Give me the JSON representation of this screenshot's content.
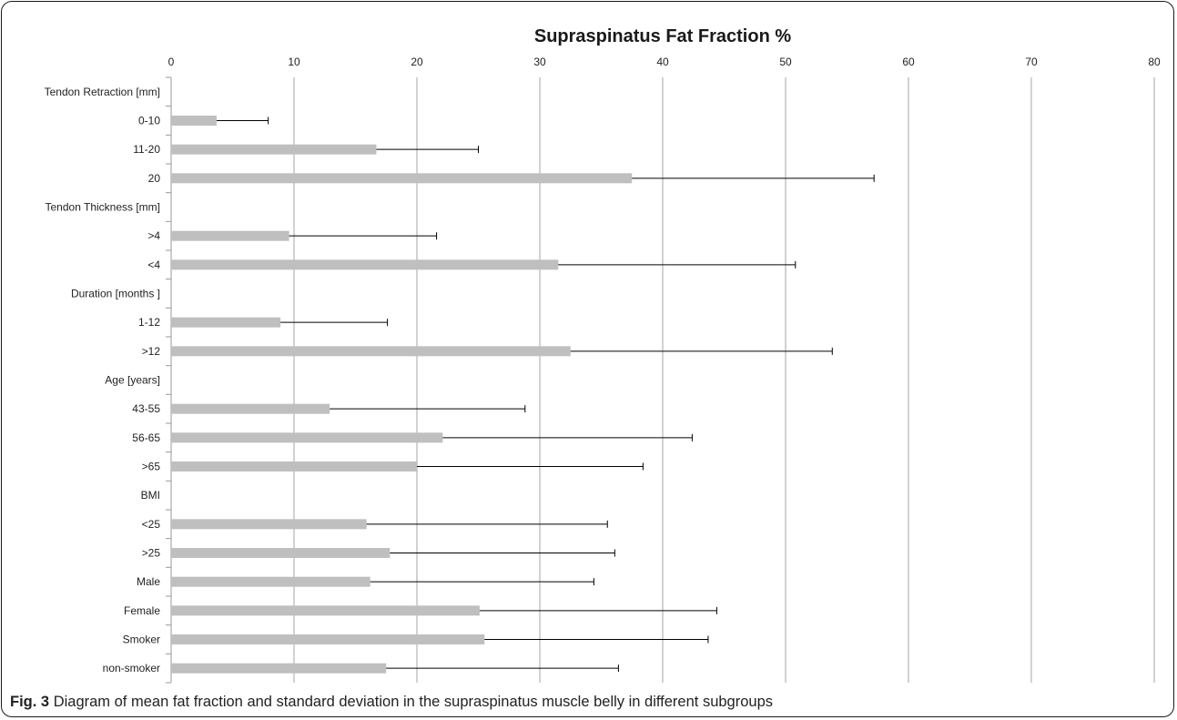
{
  "chart_data": {
    "type": "bar",
    "orientation": "horizontal",
    "title": "Supraspinatus Fat Fraction %",
    "xlabel": "",
    "ylabel": "",
    "xlim": [
      0,
      80
    ],
    "x_ticks": [
      0,
      10,
      20,
      30,
      40,
      50,
      60,
      70,
      80
    ],
    "x_axis_position": "top",
    "grid": true,
    "bar_color": "#bfbfbf",
    "categories": [
      "Tendon Retraction [mm]",
      "0-10",
      "11-20",
      "20",
      "Tendon Thickness [mm]",
      ">4",
      "<4",
      "Duration [months ]",
      "1-12",
      ">12",
      "Age [years]",
      "43-55",
      "56-65",
      ">65",
      "BMI",
      "<25",
      ">25",
      "Male",
      "Female",
      "Smoker",
      "non-smoker"
    ],
    "values": [
      null,
      3.7,
      16.7,
      37.5,
      null,
      9.6,
      31.5,
      null,
      8.9,
      32.5,
      null,
      12.9,
      22.1,
      20.0,
      null,
      15.9,
      17.8,
      16.2,
      25.1,
      25.5,
      17.5
    ],
    "error_upper": [
      null,
      7.9,
      25.0,
      57.2,
      null,
      21.6,
      50.8,
      null,
      17.6,
      53.8,
      null,
      28.8,
      42.4,
      38.4,
      null,
      35.5,
      36.1,
      34.4,
      44.4,
      43.7,
      36.4
    ]
  },
  "caption": {
    "label": "Fig. 3",
    "text": "Diagram of mean fat fraction and standard deviation in the supraspinatus muscle belly in different subgroups"
  }
}
